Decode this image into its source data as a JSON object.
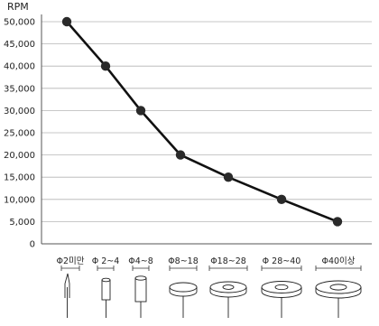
{
  "chart_data": {
    "type": "line",
    "ylabel": "RPM",
    "ylim": [
      0,
      50000
    ],
    "y_ticks": [
      "50,000",
      "45,000",
      "40,000",
      "35,000",
      "30,000",
      "25,000",
      "20,000",
      "15,000",
      "10,000",
      "5,000",
      "0"
    ],
    "y_tick_values": [
      50000,
      45000,
      40000,
      35000,
      30000,
      25000,
      20000,
      15000,
      10000,
      5000,
      0
    ],
    "categories": [
      "Φ2미만",
      "Φ 2~4",
      "Φ4~8",
      "Φ8~18",
      "Φ18~28",
      "Φ 28~40",
      "Φ40이상"
    ],
    "values": [
      50000,
      40000,
      30000,
      20000,
      15000,
      10000,
      5000
    ],
    "grid": true,
    "colors": {
      "line": "#111111",
      "marker": "#2a2a2a",
      "grid": "#b5b5b5",
      "axis": "#555555"
    },
    "icons": [
      "needle-point-icon",
      "small-cylinder-point-icon",
      "cylinder-point-icon",
      "small-wheel-icon",
      "wheel-icon",
      "large-wheel-icon",
      "largest-wheel-icon"
    ]
  }
}
